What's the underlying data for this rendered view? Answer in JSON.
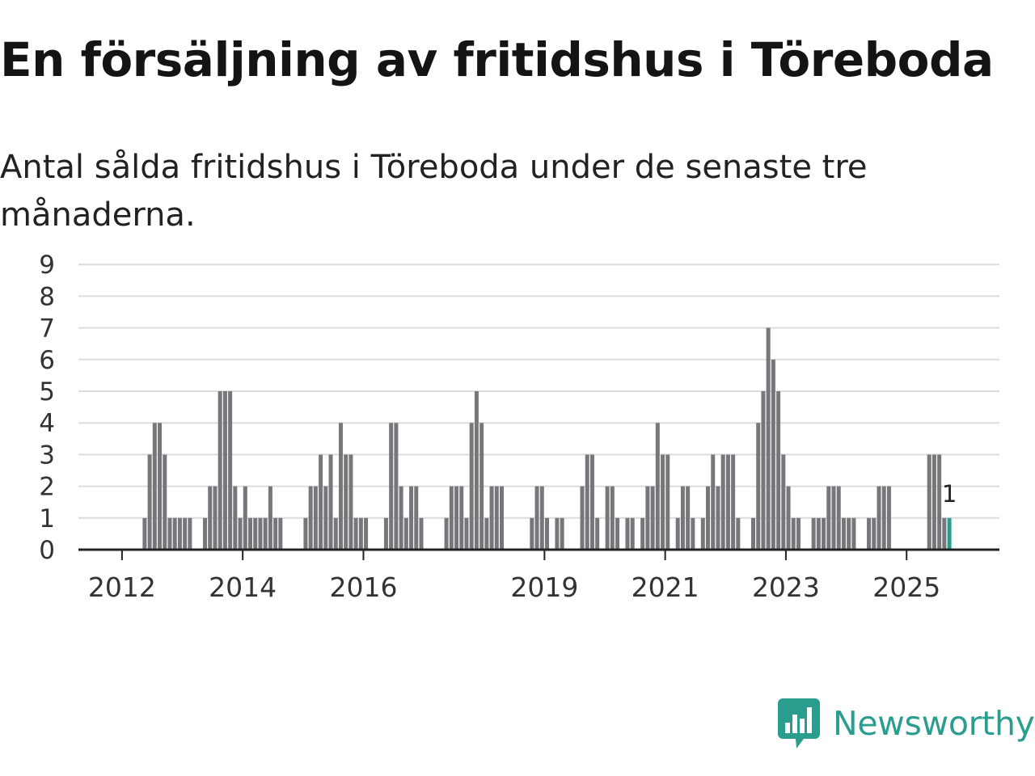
{
  "title": "En försäljning av fritidshus i Töreboda",
  "subtitle": "Antal sålda fritidshus i Töreboda under de senaste tre månaderna.",
  "brand": {
    "name": "Newsworthy",
    "color": "#2a9d8f",
    "icon": "newsworthy-bar-chart-icon"
  },
  "colors": {
    "bar": "#76767b",
    "highlight": "#2a9d8f",
    "grid": "#dcdcdc",
    "axis": "#222222"
  },
  "chart_data": {
    "type": "bar",
    "title": "",
    "xlabel": "",
    "ylabel": "",
    "ylim": [
      0,
      9
    ],
    "y_ticks": [
      0,
      1,
      2,
      3,
      4,
      5,
      6,
      7,
      8,
      9
    ],
    "x_tick_labels": [
      "2012",
      "2014",
      "2016",
      "2019",
      "2021",
      "2023",
      "2025"
    ],
    "x_tick_dates": [
      "2012-01",
      "2014-01",
      "2016-01",
      "2019-01",
      "2021-01",
      "2023-01",
      "2025-01"
    ],
    "grid": true,
    "legend": "none",
    "highlight_label": "1",
    "x": [
      "2011-09",
      "2011-10",
      "2011-11",
      "2011-12",
      "2012-01",
      "2012-02",
      "2012-03",
      "2012-04",
      "2012-05",
      "2012-06",
      "2012-07",
      "2012-08",
      "2012-09",
      "2012-10",
      "2012-11",
      "2012-12",
      "2013-01",
      "2013-02",
      "2013-03",
      "2013-04",
      "2013-05",
      "2013-06",
      "2013-07",
      "2013-08",
      "2013-09",
      "2013-10",
      "2013-11",
      "2013-12",
      "2014-01",
      "2014-02",
      "2014-03",
      "2014-04",
      "2014-05",
      "2014-06",
      "2014-07",
      "2014-08",
      "2014-09",
      "2014-10",
      "2014-11",
      "2014-12",
      "2015-01",
      "2015-02",
      "2015-03",
      "2015-04",
      "2015-05",
      "2015-06",
      "2015-07",
      "2015-08",
      "2015-09",
      "2015-10",
      "2015-11",
      "2015-12",
      "2016-01",
      "2016-02",
      "2016-03",
      "2016-04",
      "2016-05",
      "2016-06",
      "2016-07",
      "2016-08",
      "2016-09",
      "2016-10",
      "2016-11",
      "2016-12",
      "2017-01",
      "2017-02",
      "2017-03",
      "2017-04",
      "2017-05",
      "2017-06",
      "2017-07",
      "2017-08",
      "2017-09",
      "2017-10",
      "2017-11",
      "2017-12",
      "2018-01",
      "2018-02",
      "2018-03",
      "2018-04",
      "2018-05",
      "2018-06",
      "2018-07",
      "2018-08",
      "2018-09",
      "2018-10",
      "2018-11",
      "2018-12",
      "2019-01",
      "2019-02",
      "2019-03",
      "2019-04",
      "2019-05",
      "2019-06",
      "2019-07",
      "2019-08",
      "2019-09",
      "2019-10",
      "2019-11",
      "2019-12",
      "2020-01",
      "2020-02",
      "2020-03",
      "2020-04",
      "2020-05",
      "2020-06",
      "2020-07",
      "2020-08",
      "2020-09",
      "2020-10",
      "2020-11",
      "2020-12",
      "2021-01",
      "2021-02",
      "2021-03",
      "2021-04",
      "2021-05",
      "2021-06",
      "2021-07",
      "2021-08",
      "2021-09",
      "2021-10",
      "2021-11",
      "2021-12",
      "2022-01",
      "2022-02",
      "2022-03",
      "2022-04",
      "2022-05",
      "2022-06",
      "2022-07",
      "2022-08",
      "2022-09",
      "2022-10",
      "2022-11",
      "2022-12",
      "2023-01",
      "2023-02",
      "2023-03",
      "2023-04",
      "2023-05",
      "2023-06",
      "2023-07",
      "2023-08",
      "2023-09",
      "2023-10",
      "2023-11",
      "2023-12",
      "2024-01",
      "2024-02",
      "2024-03",
      "2024-04",
      "2024-05",
      "2024-06",
      "2024-07",
      "2024-08",
      "2024-09",
      "2024-10",
      "2024-11",
      "2024-12",
      "2025-01",
      "2025-02",
      "2025-03",
      "2025-04",
      "2025-05",
      "2025-06",
      "2025-07",
      "2025-08",
      "2025-09"
    ],
    "series": [
      {
        "values": [
          0,
          0,
          0,
          0,
          0,
          0,
          0,
          0,
          1,
          3,
          4,
          4,
          3,
          1,
          1,
          1,
          1,
          1,
          0,
          0,
          1,
          2,
          2,
          5,
          5,
          5,
          2,
          1,
          2,
          1,
          1,
          1,
          1,
          2,
          1,
          1,
          0,
          0,
          0,
          0,
          1,
          2,
          2,
          3,
          2,
          3,
          1,
          4,
          3,
          3,
          1,
          1,
          1,
          0,
          0,
          0,
          1,
          4,
          4,
          2,
          1,
          2,
          2,
          1,
          0,
          0,
          0,
          0,
          1,
          2,
          2,
          2,
          1,
          4,
          5,
          4,
          1,
          2,
          2,
          2,
          0,
          0,
          0,
          0,
          0,
          1,
          2,
          2,
          1,
          0,
          1,
          1,
          0,
          0,
          0,
          2,
          3,
          3,
          1,
          0,
          2,
          2,
          1,
          0,
          1,
          1,
          0,
          1,
          2,
          2,
          4,
          3,
          3,
          0,
          1,
          2,
          2,
          1,
          0,
          1,
          2,
          3,
          2,
          3,
          3,
          3,
          1,
          0,
          0,
          1,
          4,
          5,
          7,
          6,
          5,
          3,
          2,
          1,
          1,
          0,
          0,
          1,
          1,
          1,
          2,
          2,
          2,
          1,
          1,
          1,
          0,
          0,
          1,
          1,
          2,
          2,
          2,
          0,
          0,
          0,
          0,
          0,
          0,
          0,
          3,
          3,
          3,
          1,
          1
        ]
      }
    ]
  }
}
